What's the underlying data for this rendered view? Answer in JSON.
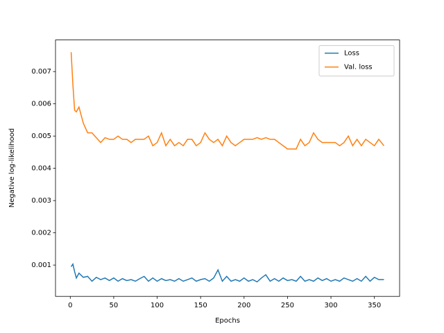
{
  "chart_data": {
    "type": "line",
    "xlabel": "Epochs",
    "ylabel": "Negative log-likelihood",
    "x": [
      1,
      3,
      5,
      7,
      10,
      15,
      20,
      25,
      30,
      35,
      40,
      45,
      50,
      55,
      60,
      65,
      70,
      75,
      80,
      85,
      90,
      95,
      100,
      105,
      110,
      115,
      120,
      125,
      130,
      135,
      140,
      145,
      150,
      155,
      160,
      165,
      170,
      175,
      180,
      185,
      190,
      195,
      200,
      205,
      210,
      215,
      220,
      225,
      230,
      235,
      240,
      245,
      250,
      255,
      260,
      265,
      270,
      275,
      280,
      285,
      290,
      295,
      300,
      305,
      310,
      315,
      320,
      325,
      330,
      335,
      340,
      345,
      350,
      355,
      361
    ],
    "series": [
      {
        "name": "Loss",
        "color": "#1f77b4",
        "values": [
          0.00095,
          0.00103,
          0.0008,
          0.0006,
          0.00075,
          0.00062,
          0.00065,
          0.0005,
          0.00062,
          0.00055,
          0.0006,
          0.00052,
          0.0006,
          0.0005,
          0.00058,
          0.00052,
          0.00055,
          0.0005,
          0.00058,
          0.00065,
          0.0005,
          0.0006,
          0.0005,
          0.00058,
          0.00052,
          0.00055,
          0.0005,
          0.00058,
          0.0005,
          0.00055,
          0.0006,
          0.0005,
          0.00055,
          0.00058,
          0.0005,
          0.0006,
          0.00085,
          0.0005,
          0.00065,
          0.0005,
          0.00055,
          0.0005,
          0.0006,
          0.0005,
          0.00055,
          0.00048,
          0.0006,
          0.0007,
          0.0005,
          0.00058,
          0.0005,
          0.0006,
          0.00052,
          0.00055,
          0.0005,
          0.00065,
          0.0005,
          0.00055,
          0.0005,
          0.0006,
          0.00052,
          0.00058,
          0.0005,
          0.00055,
          0.0005,
          0.0006,
          0.00055,
          0.0005,
          0.00058,
          0.0005,
          0.00065,
          0.0005,
          0.00062,
          0.00055,
          0.00055
        ]
      },
      {
        "name": "Val. loss",
        "color": "#ff7f0e",
        "values": [
          0.0076,
          0.0066,
          0.0058,
          0.00575,
          0.0059,
          0.0054,
          0.0051,
          0.0051,
          0.00495,
          0.0048,
          0.00495,
          0.0049,
          0.0049,
          0.005,
          0.0049,
          0.0049,
          0.0048,
          0.0049,
          0.0049,
          0.0049,
          0.005,
          0.0047,
          0.0048,
          0.0051,
          0.0047,
          0.0049,
          0.0047,
          0.0048,
          0.0047,
          0.0049,
          0.0049,
          0.0047,
          0.0048,
          0.0051,
          0.0049,
          0.0048,
          0.0049,
          0.0047,
          0.005,
          0.0048,
          0.0047,
          0.0048,
          0.0049,
          0.0049,
          0.0049,
          0.00495,
          0.0049,
          0.00495,
          0.0049,
          0.0049,
          0.0048,
          0.0047,
          0.0046,
          0.0046,
          0.0046,
          0.0049,
          0.0047,
          0.0048,
          0.0051,
          0.0049,
          0.0048,
          0.0048,
          0.0048,
          0.0048,
          0.0047,
          0.0048,
          0.005,
          0.0047,
          0.0049,
          0.0047,
          0.0049,
          0.0048,
          0.0047,
          0.0049,
          0.0047
        ]
      }
    ],
    "xlim": [
      -17,
      379
    ],
    "xticks": [
      0,
      50,
      100,
      150,
      200,
      250,
      300,
      350
    ],
    "ylim": [
      3e-05,
      0.00798
    ],
    "yticks": [
      0.001,
      0.002,
      0.003,
      0.004,
      0.005,
      0.006,
      0.007
    ],
    "legend": "upper right"
  }
}
